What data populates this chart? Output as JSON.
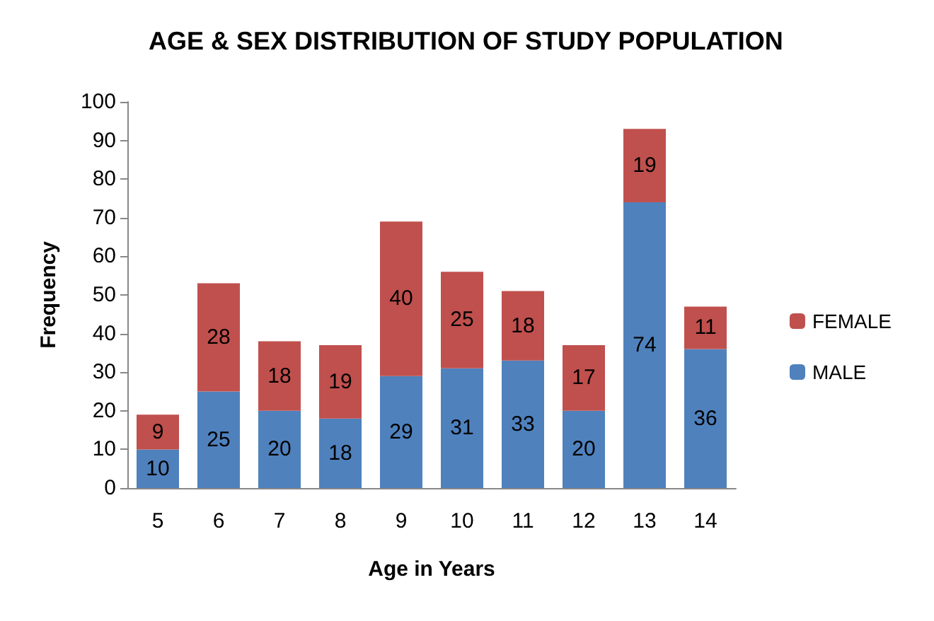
{
  "chart_data": {
    "type": "bar",
    "title": "AGE & SEX DISTRIBUTION OF STUDY POPULATION",
    "xlabel": "Age in Years",
    "ylabel": "Frequency",
    "categories": [
      "5",
      "6",
      "7",
      "8",
      "9",
      "10",
      "11",
      "12",
      "13",
      "14"
    ],
    "series": [
      {
        "name": "MALE",
        "color": "#4f81bd",
        "values": [
          10,
          25,
          20,
          18,
          29,
          31,
          33,
          20,
          74,
          36
        ]
      },
      {
        "name": "FEMALE",
        "color": "#c0504d",
        "values": [
          9,
          28,
          18,
          19,
          40,
          25,
          18,
          17,
          19,
          11
        ]
      }
    ],
    "stacked": true,
    "data_labels": true,
    "ylim": [
      0,
      100
    ],
    "yticks": [
      0,
      10,
      20,
      30,
      40,
      50,
      60,
      70,
      80,
      90,
      100
    ],
    "grid": false,
    "legend": "right"
  }
}
